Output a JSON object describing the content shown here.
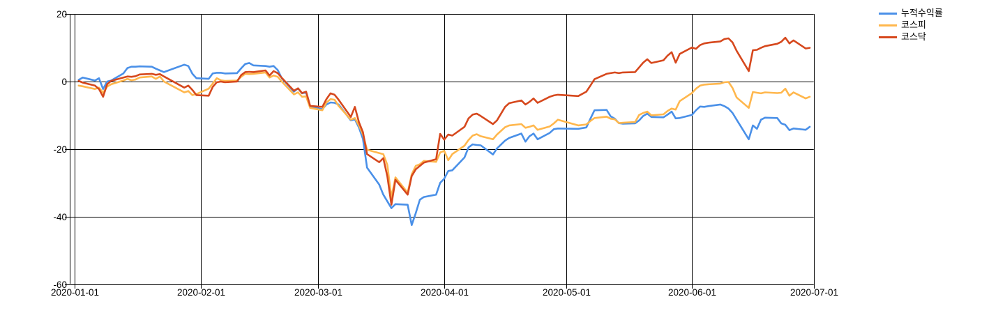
{
  "chart_data": {
    "type": "line",
    "title": "",
    "xlabel": "",
    "ylabel": "",
    "grid": true,
    "grid_color": "#000000",
    "background": "#ffffff",
    "legend_position": "top-right",
    "ylim": [
      -60,
      20
    ],
    "xlim": [
      "2020-01-01",
      "2020-07-01"
    ],
    "y_ticks": [
      20,
      0,
      -20,
      -40,
      -60
    ],
    "y_tick_labels": [
      "20",
      "0",
      "-20",
      "-40",
      "-60"
    ],
    "x_ticks": [
      "2020-01-01",
      "2020-02-01",
      "2020-03-01",
      "2020-04-01",
      "2020-05-01",
      "2020-06-01",
      "2020-07-01"
    ],
    "x_tick_labels": [
      "2020-01-01",
      "2020-02-01",
      "2020-03-01",
      "2020-04-01",
      "2020-05-01",
      "2020-06-01",
      "2020-07-01"
    ],
    "x": [
      "2020-01-02",
      "2020-01-03",
      "2020-01-06",
      "2020-01-07",
      "2020-01-08",
      "2020-01-09",
      "2020-01-10",
      "2020-01-13",
      "2020-01-14",
      "2020-01-15",
      "2020-01-16",
      "2020-01-17",
      "2020-01-20",
      "2020-01-21",
      "2020-01-22",
      "2020-01-23",
      "2020-01-28",
      "2020-01-29",
      "2020-01-30",
      "2020-01-31",
      "2020-02-03",
      "2020-02-04",
      "2020-02-05",
      "2020-02-06",
      "2020-02-07",
      "2020-02-10",
      "2020-02-11",
      "2020-02-12",
      "2020-02-13",
      "2020-02-14",
      "2020-02-17",
      "2020-02-18",
      "2020-02-19",
      "2020-02-20",
      "2020-02-21",
      "2020-02-24",
      "2020-02-25",
      "2020-02-26",
      "2020-02-27",
      "2020-02-28",
      "2020-03-02",
      "2020-03-03",
      "2020-03-04",
      "2020-03-05",
      "2020-03-06",
      "2020-03-09",
      "2020-03-10",
      "2020-03-11",
      "2020-03-12",
      "2020-03-13",
      "2020-03-16",
      "2020-03-17",
      "2020-03-18",
      "2020-03-19",
      "2020-03-20",
      "2020-03-23",
      "2020-03-24",
      "2020-03-25",
      "2020-03-26",
      "2020-03-27",
      "2020-03-30",
      "2020-03-31",
      "2020-04-01",
      "2020-04-02",
      "2020-04-03",
      "2020-04-06",
      "2020-04-07",
      "2020-04-08",
      "2020-04-09",
      "2020-04-10",
      "2020-04-13",
      "2020-04-14",
      "2020-04-16",
      "2020-04-17",
      "2020-04-20",
      "2020-04-21",
      "2020-04-22",
      "2020-04-23",
      "2020-04-24",
      "2020-04-27",
      "2020-04-28",
      "2020-04-29",
      "2020-05-04",
      "2020-05-06",
      "2020-05-07",
      "2020-05-08",
      "2020-05-11",
      "2020-05-12",
      "2020-05-13",
      "2020-05-14",
      "2020-05-15",
      "2020-05-18",
      "2020-05-19",
      "2020-05-20",
      "2020-05-21",
      "2020-05-22",
      "2020-05-25",
      "2020-05-26",
      "2020-05-27",
      "2020-05-28",
      "2020-05-29",
      "2020-06-01",
      "2020-06-02",
      "2020-06-03",
      "2020-06-04",
      "2020-06-05",
      "2020-06-08",
      "2020-06-09",
      "2020-06-10",
      "2020-06-11",
      "2020-06-12",
      "2020-06-15",
      "2020-06-16",
      "2020-06-17",
      "2020-06-18",
      "2020-06-19",
      "2020-06-22",
      "2020-06-23",
      "2020-06-24",
      "2020-06-25",
      "2020-06-26",
      "2020-06-29",
      "2020-06-30"
    ],
    "series": [
      {
        "name": "누적수익률",
        "color": "#4a90e8",
        "values": [
          0.5,
          1.2,
          0.3,
          1.0,
          -2.2,
          0.0,
          0.3,
          2.4,
          4.0,
          4.4,
          4.4,
          4.5,
          4.4,
          3.8,
          3.3,
          2.8,
          5.0,
          4.6,
          2.3,
          1.0,
          0.8,
          2.4,
          2.6,
          2.6,
          2.4,
          2.5,
          3.9,
          5.2,
          5.5,
          4.8,
          4.6,
          4.4,
          4.6,
          3.4,
          1.0,
          -3.0,
          -2.0,
          -3.5,
          -3.2,
          -7.5,
          -8.2,
          -6.8,
          -6.2,
          -6.3,
          -6.8,
          -11.5,
          -11.2,
          -13.6,
          -17.0,
          -25.5,
          -30.5,
          -33.5,
          -35.5,
          -37.5,
          -36.3,
          -36.5,
          -42.5,
          -39.0,
          -35.0,
          -34.2,
          -33.5,
          -30.0,
          -28.8,
          -26.5,
          -26.3,
          -22.5,
          -19.5,
          -18.6,
          -18.8,
          -18.9,
          -21.6,
          -19.8,
          -17.5,
          -16.7,
          -15.4,
          -17.8,
          -16.2,
          -15.4,
          -17.1,
          -15.2,
          -14.1,
          -13.9,
          -14.0,
          -13.6,
          -11.0,
          -8.5,
          -8.4,
          -10.3,
          -11.0,
          -12.3,
          -12.5,
          -12.4,
          -11.5,
          -10.2,
          -9.5,
          -10.5,
          -10.6,
          -9.8,
          -8.9,
          -10.9,
          -10.8,
          -9.9,
          -8.5,
          -7.4,
          -7.5,
          -7.3,
          -6.8,
          -7.3,
          -8.0,
          -9.3,
          -11.3,
          -17.1,
          -13.0,
          -14.0,
          -11.3,
          -10.7,
          -10.8,
          -12.4,
          -12.8,
          -14.4,
          -13.9,
          -14.3,
          -13.4
        ]
      },
      {
        "name": "코스피",
        "color": "#ffb74d",
        "values": [
          -1.2,
          -1.4,
          -2.2,
          -1.8,
          -3.3,
          -1.5,
          -0.8,
          0.3,
          0.8,
          0.4,
          0.6,
          1.2,
          1.5,
          0.8,
          1.5,
          0.0,
          -3.2,
          -2.8,
          -4.0,
          -3.7,
          -2.1,
          -0.6,
          1.0,
          0.4,
          0.2,
          0.3,
          1.4,
          2.3,
          2.2,
          2.3,
          2.7,
          1.2,
          1.8,
          1.4,
          0.0,
          -3.8,
          -3.2,
          -4.5,
          -4.4,
          -7.8,
          -8.5,
          -6.2,
          -5.2,
          -5.4,
          -7.2,
          -11.3,
          -10.8,
          -13.0,
          -15.7,
          -20.2,
          -21.2,
          -21.5,
          -24.7,
          -34.3,
          -28.4,
          -32.9,
          -27.5,
          -25.0,
          -24.5,
          -23.5,
          -23.8,
          -21.0,
          -20.5,
          -23.3,
          -21.5,
          -19.0,
          -17.3,
          -16.0,
          -15.6,
          -16.2,
          -17.1,
          -15.7,
          -13.5,
          -13.0,
          -12.6,
          -13.7,
          -13.4,
          -13.0,
          -14.3,
          -13.3,
          -12.4,
          -11.3,
          -13.0,
          -12.7,
          -11.7,
          -10.8,
          -10.4,
          -11.0,
          -11.2,
          -12.3,
          -12.2,
          -12.0,
          -9.9,
          -9.3,
          -8.9,
          -10.0,
          -9.7,
          -8.7,
          -8.0,
          -8.3,
          -5.8,
          -3.4,
          -2.1,
          -1.2,
          -0.9,
          -0.8,
          -0.6,
          -0.2,
          -0.1,
          -1.9,
          -4.7,
          -7.8,
          -3.1,
          -3.3,
          -3.5,
          -3.2,
          -3.4,
          -3.3,
          -2.1,
          -4.2,
          -3.2,
          -5.0,
          -4.5
        ]
      },
      {
        "name": "코스닥",
        "color": "#d6481d",
        "values": [
          0.2,
          -0.3,
          -1.2,
          -2.2,
          -4.5,
          -0.8,
          0.2,
          1.2,
          1.5,
          1.4,
          1.6,
          2.1,
          2.3,
          2.0,
          2.2,
          1.5,
          -1.8,
          -1.2,
          -2.5,
          -4.0,
          -4.2,
          -1.6,
          -0.2,
          0.0,
          -0.2,
          0.0,
          1.9,
          2.8,
          2.9,
          2.8,
          3.3,
          1.8,
          3.1,
          2.5,
          1.1,
          -2.7,
          -2.0,
          -3.4,
          -3.0,
          -7.2,
          -7.5,
          -5.2,
          -3.5,
          -3.9,
          -5.4,
          -10.5,
          -7.5,
          -12.0,
          -15.0,
          -21.5,
          -23.9,
          -22.7,
          -28.1,
          -36.5,
          -29.1,
          -33.5,
          -28.0,
          -26.0,
          -25.0,
          -24.0,
          -23.0,
          -15.5,
          -17.2,
          -15.7,
          -16.0,
          -13.4,
          -10.9,
          -9.8,
          -9.5,
          -10.2,
          -12.6,
          -11.5,
          -7.5,
          -6.4,
          -5.6,
          -6.8,
          -6.0,
          -5.0,
          -6.3,
          -4.5,
          -4.1,
          -3.9,
          -4.3,
          -3.0,
          -1.2,
          0.7,
          2.3,
          2.5,
          2.7,
          2.5,
          2.7,
          2.8,
          4.2,
          5.6,
          6.6,
          5.5,
          6.3,
          7.7,
          8.7,
          5.6,
          8.2,
          10.1,
          9.7,
          10.8,
          11.3,
          11.5,
          11.9,
          12.6,
          12.8,
          11.6,
          9.1,
          3.1,
          9.3,
          9.4,
          10.0,
          10.5,
          11.2,
          11.8,
          13.0,
          11.3,
          12.2,
          9.8,
          10.0
        ]
      }
    ]
  }
}
